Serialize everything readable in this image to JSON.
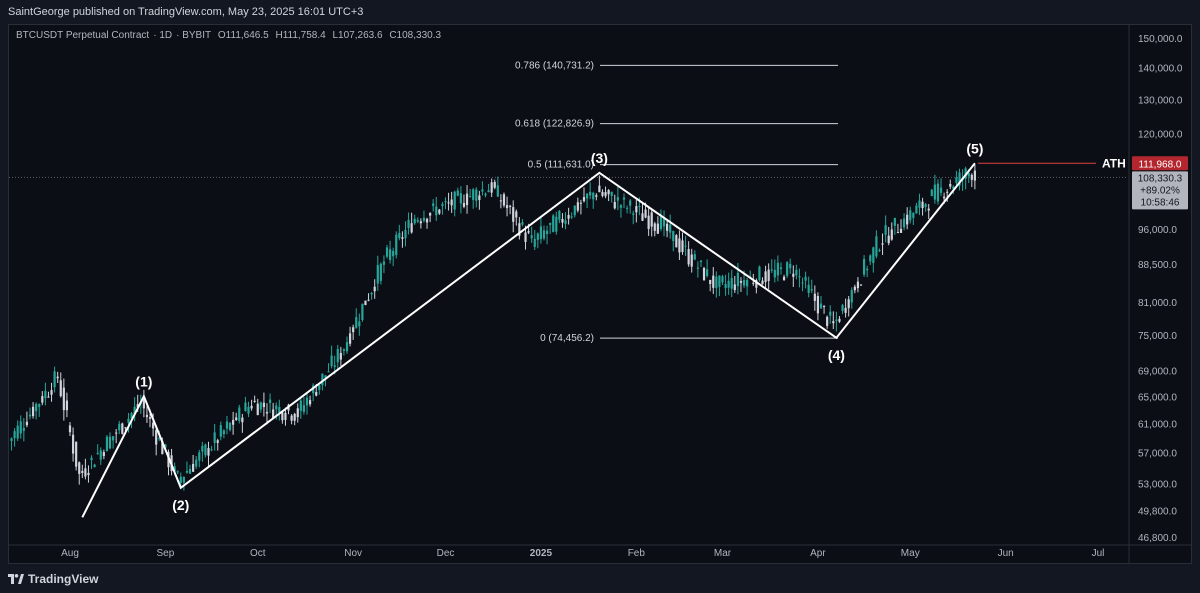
{
  "header": {
    "published": "SaintGeorge published on TradingView.com, May 23, 2025 16:01 UTC+3"
  },
  "legend": {
    "symbol": "BTCUSDT Perpetual Contract",
    "interval": "1D",
    "exchange": "BYBIT",
    "open": "O111,646.5",
    "high": "H111,758.4",
    "low": "L107,263.6",
    "close": "C108,330.3"
  },
  "footer": {
    "brand": "TradingView"
  },
  "colors": {
    "background": "#0c0e15",
    "up": "#26a69a",
    "down": "#d1d4dc",
    "ath_line": "#e04040",
    "price_tag_ath": "#b3262e",
    "price_tag_last": "#b2b5be"
  },
  "chart_data": {
    "type": "candlestick",
    "symbol": "BTCUSDT",
    "x_axis_labels": [
      "Aug",
      "Sep",
      "Oct",
      "Nov",
      "Dec",
      "2025",
      "Feb",
      "Mar",
      "Apr",
      "May",
      "Jun",
      "Jul"
    ],
    "y_axis_labels": [
      "150,000.0",
      "140,000.0",
      "130,000.0",
      "120,000.0",
      "96,000.0",
      "88,500.0",
      "81,000.0",
      "75,000.0",
      "69,000.0",
      "65,000.0",
      "61,000.0",
      "57,000.0",
      "53,000.0",
      "49,800.0",
      "46,800.0"
    ],
    "y_scale": "log",
    "ylim": [
      46800,
      150000
    ],
    "fibonacci": [
      {
        "level": "0.786",
        "price": 140731.2,
        "label": "0.786 (140,731.2)"
      },
      {
        "level": "0.618",
        "price": 122826.9,
        "label": "0.618 (122,826.9)"
      },
      {
        "level": "0.5",
        "price": 111631.0,
        "label": "0.5 (111,631.0)"
      },
      {
        "level": "0",
        "price": 74456.2,
        "label": "0 (74,456.2)"
      }
    ],
    "waves": [
      {
        "label": "",
        "date": "2024-08-05",
        "price": 49000
      },
      {
        "label": "(1)",
        "date": "2024-08-25",
        "price": 65000
      },
      {
        "label": "(2)",
        "date": "2024-09-06",
        "price": 52500
      },
      {
        "label": "(3)",
        "date": "2025-01-20",
        "price": 109500
      },
      {
        "label": "(4)",
        "date": "2025-04-07",
        "price": 74500
      },
      {
        "label": "(5)",
        "date": "2025-05-22",
        "price": 111968
      }
    ],
    "ath": {
      "label": "ATH",
      "price": "111,968.0"
    },
    "last_price": {
      "price": "108,330.3",
      "change": "+89.02%",
      "countdown": "10:58:46"
    },
    "series": [
      {
        "name": "",
        "points": [
          {
            "date": "2024-07-12",
            "close": 58000
          },
          {
            "date": "2024-07-29",
            "close": 68000
          },
          {
            "date": "2024-08-05",
            "close": 54000
          },
          {
            "date": "2024-08-25",
            "close": 64000
          },
          {
            "date": "2024-09-06",
            "close": 53500
          },
          {
            "date": "2024-09-30",
            "close": 64000
          },
          {
            "date": "2024-10-15",
            "close": 62500
          },
          {
            "date": "2024-10-29",
            "close": 72000
          },
          {
            "date": "2024-11-12",
            "close": 89000
          },
          {
            "date": "2024-11-22",
            "close": 98500
          },
          {
            "date": "2024-12-17",
            "close": 106000
          },
          {
            "date": "2024-12-30",
            "close": 93000
          },
          {
            "date": "2025-01-20",
            "close": 105000
          },
          {
            "date": "2025-02-10",
            "close": 97000
          },
          {
            "date": "2025-02-28",
            "close": 84000
          },
          {
            "date": "2025-03-25",
            "close": 87500
          },
          {
            "date": "2025-04-07",
            "close": 76500
          },
          {
            "date": "2025-04-22",
            "close": 93500
          },
          {
            "date": "2025-05-10",
            "close": 104000
          },
          {
            "date": "2025-05-22",
            "close": 110000
          },
          {
            "date": "2025-05-23",
            "close": 108330
          }
        ]
      }
    ]
  }
}
